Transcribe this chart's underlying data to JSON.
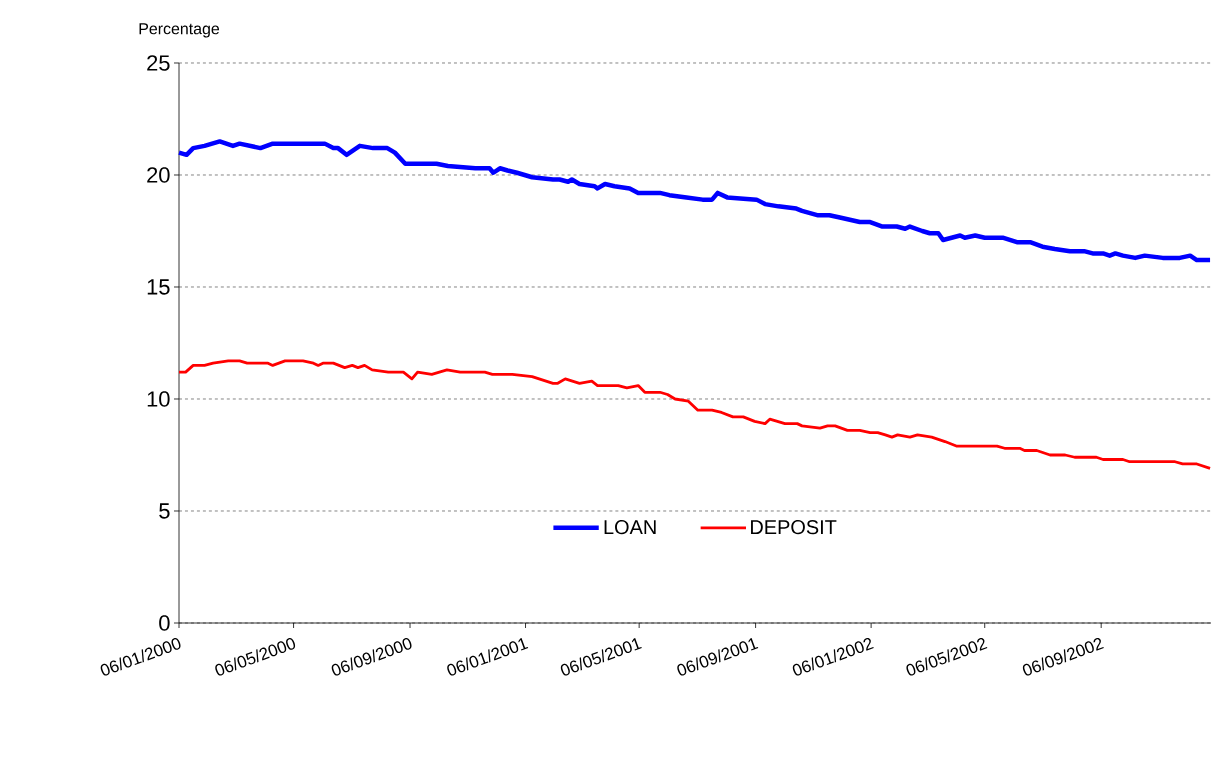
{
  "chart_data": {
    "type": "line",
    "ylabel": "Percentage",
    "x": [
      "2000-01-06",
      "2000-01-14",
      "2000-01-21",
      "2000-02-02",
      "2000-02-18",
      "2000-03-03",
      "2000-03-10",
      "2000-04-01",
      "2000-04-14",
      "2000-06-08",
      "2000-06-17",
      "2000-06-22",
      "2000-07-01",
      "2000-07-15",
      "2000-07-29",
      "2000-08-13",
      "2000-08-21",
      "2000-09-01",
      "2000-09-11",
      "2000-10-04",
      "2000-10-16",
      "2000-11-14",
      "2000-11-29",
      "2000-12-03",
      "2000-12-10",
      "2000-12-18",
      "2000-12-28",
      "2001-01-13",
      "2001-02-04",
      "2001-02-11",
      "2001-02-20",
      "2001-02-24",
      "2001-03-04",
      "2001-03-20",
      "2001-03-23",
      "2001-03-31",
      "2001-04-10",
      "2001-04-26",
      "2001-05-05",
      "2001-05-13",
      "2001-05-28",
      "2001-06-07",
      "2001-06-25",
      "2001-07-12",
      "2001-07-22",
      "2001-07-28",
      "2001-08-07",
      "2001-09-07",
      "2001-09-16",
      "2001-09-30",
      "2001-10-19",
      "2001-10-25",
      "2001-11-11",
      "2001-11-23",
      "2001-12-04",
      "2001-12-25",
      "2002-01-05",
      "2002-01-18",
      "2002-02-02",
      "2002-02-11",
      "2002-02-16",
      "2002-03-01",
      "2002-03-09",
      "2002-03-18",
      "2002-03-23",
      "2002-04-10",
      "2002-04-15",
      "2002-04-26",
      "2002-05-06",
      "2002-05-25",
      "2002-06-09",
      "2002-06-23",
      "2002-07-06",
      "2002-07-19",
      "2002-08-04",
      "2002-08-19",
      "2002-08-28",
      "2002-09-08",
      "2002-09-15",
      "2002-09-21",
      "2002-09-29",
      "2002-10-12",
      "2002-10-22",
      "2002-11-10",
      "2002-11-28",
      "2002-12-09",
      "2002-12-16",
      "2002-12-22",
      "2002-12-30"
    ],
    "series": [
      {
        "name": "LOAN",
        "color": "#0000ff",
        "values": [
          21.0,
          20.9,
          21.2,
          21.3,
          21.5,
          21.3,
          21.4,
          21.2,
          21.4,
          21.4,
          21.2,
          21.2,
          20.9,
          21.3,
          21.2,
          21.2,
          21.0,
          20.5,
          20.5,
          20.5,
          20.4,
          20.3,
          20.3,
          20.1,
          20.3,
          20.2,
          20.1,
          19.9,
          19.8,
          19.8,
          19.7,
          19.8,
          19.6,
          19.5,
          19.4,
          19.6,
          19.5,
          19.4,
          19.2,
          19.2,
          19.2,
          19.1,
          19.0,
          18.9,
          18.9,
          19.2,
          19.0,
          18.9,
          18.7,
          18.6,
          18.5,
          18.4,
          18.2,
          18.2,
          18.1,
          17.9,
          17.9,
          17.7,
          17.7,
          17.6,
          17.7,
          17.5,
          17.4,
          17.4,
          17.1,
          17.3,
          17.2,
          17.3,
          17.2,
          17.2,
          17.0,
          17.0,
          16.8,
          16.7,
          16.6,
          16.6,
          16.5,
          16.5,
          16.4,
          16.5,
          16.4,
          16.3,
          16.4,
          16.3,
          16.3,
          16.4,
          16.2,
          16.2,
          16.2
        ]
      },
      {
        "name": "DEPOSIT",
        "color": "#ff0000",
        "x": [
          "2000-01-06",
          "2000-01-13",
          "2000-01-21",
          "2000-02-02",
          "2000-02-11",
          "2000-02-27",
          "2000-03-10",
          "2000-03-18",
          "2000-04-09",
          "2000-04-14",
          "2000-04-27",
          "2000-05-16",
          "2000-05-27",
          "2000-06-01",
          "2000-06-06",
          "2000-06-17",
          "2000-06-29",
          "2000-07-07",
          "2000-07-13",
          "2000-07-20",
          "2000-07-28",
          "2000-08-14",
          "2000-08-30",
          "2000-09-08",
          "2000-09-14",
          "2000-09-29",
          "2000-10-15",
          "2000-10-29",
          "2000-11-16",
          "2000-11-24",
          "2000-12-02",
          "2000-12-23",
          "2001-01-13",
          "2001-02-04",
          "2001-02-09",
          "2001-02-17",
          "2001-03-04",
          "2001-03-17",
          "2001-03-23",
          "2001-04-14",
          "2001-04-23",
          "2001-05-05",
          "2001-05-12",
          "2001-05-28",
          "2001-06-05",
          "2001-06-13",
          "2001-06-27",
          "2001-07-07",
          "2001-07-22",
          "2001-08-01",
          "2001-08-13",
          "2001-08-24",
          "2001-09-05",
          "2001-09-16",
          "2001-09-21",
          "2001-10-07",
          "2001-10-20",
          "2001-10-25",
          "2001-11-13",
          "2001-11-21",
          "2001-11-29",
          "2001-12-12",
          "2001-12-25",
          "2002-01-05",
          "2002-01-13",
          "2002-01-21",
          "2002-01-28",
          "2002-02-03",
          "2002-02-16",
          "2002-02-24",
          "2002-03-11",
          "2002-03-25",
          "2002-04-06",
          "2002-04-20",
          "2002-04-28",
          "2002-05-19",
          "2002-05-27",
          "2002-06-12",
          "2002-06-17",
          "2002-06-30",
          "2002-07-14",
          "2002-07-30",
          "2002-08-09",
          "2002-09-01",
          "2002-09-08",
          "2002-09-29",
          "2002-10-06",
          "2002-11-23",
          "2002-12-01",
          "2002-12-16",
          "2002-12-30"
        ],
        "values": [
          11.2,
          11.2,
          11.5,
          11.5,
          11.6,
          11.7,
          11.7,
          11.6,
          11.6,
          11.5,
          11.7,
          11.7,
          11.6,
          11.5,
          11.6,
          11.6,
          11.4,
          11.5,
          11.4,
          11.5,
          11.3,
          11.2,
          11.2,
          10.9,
          11.2,
          11.1,
          11.3,
          11.2,
          11.2,
          11.2,
          11.1,
          11.1,
          11.0,
          10.7,
          10.7,
          10.9,
          10.7,
          10.8,
          10.6,
          10.6,
          10.5,
          10.6,
          10.3,
          10.3,
          10.2,
          10.0,
          9.9,
          9.5,
          9.5,
          9.4,
          9.2,
          9.2,
          9.0,
          8.9,
          9.1,
          8.9,
          8.9,
          8.8,
          8.7,
          8.8,
          8.8,
          8.6,
          8.6,
          8.5,
          8.5,
          8.4,
          8.3,
          8.4,
          8.3,
          8.4,
          8.3,
          8.1,
          7.9,
          7.9,
          7.9,
          7.9,
          7.8,
          7.8,
          7.7,
          7.7,
          7.5,
          7.5,
          7.4,
          7.4,
          7.3,
          7.3,
          7.2,
          7.2,
          7.1,
          7.1,
          6.9
        ]
      }
    ],
    "xlim": [
      "2000-01-06",
      "2002-12-31"
    ],
    "xticks": [
      {
        "value": "2000-01-06",
        "label": "06/01/2000"
      },
      {
        "value": "2000-05-06",
        "label": "06/05/2000"
      },
      {
        "value": "2000-09-06",
        "label": "06/09/2000"
      },
      {
        "value": "2001-01-06",
        "label": "06/01/2001"
      },
      {
        "value": "2001-05-06",
        "label": "06/05/2001"
      },
      {
        "value": "2001-09-06",
        "label": "06/09/2001"
      },
      {
        "value": "2002-01-06",
        "label": "06/01/2002"
      },
      {
        "value": "2002-05-06",
        "label": "06/05/2002"
      },
      {
        "value": "2002-09-06",
        "label": "06/09/2002"
      }
    ],
    "ylim": [
      0,
      25
    ],
    "yticks": [
      0,
      5,
      10,
      15,
      20,
      25
    ],
    "grid": "y",
    "legend": "bottom",
    "marker": "none",
    "line_style": "solid"
  }
}
